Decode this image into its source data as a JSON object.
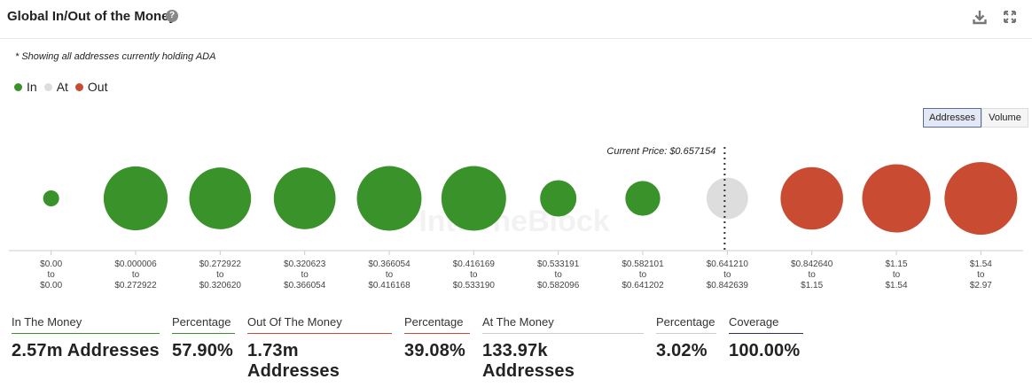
{
  "header": {
    "title": "Global In/Out of the Money",
    "help_glyph": "?"
  },
  "note": "* Showing all addresses currently holding ADA",
  "legend": [
    {
      "label": "In",
      "color": "#3a922a"
    },
    {
      "label": "At",
      "color": "#dddddd"
    },
    {
      "label": "Out",
      "color": "#c84b32"
    }
  ],
  "toggles": {
    "addresses": "Addresses",
    "volume": "Volume",
    "active": "addresses"
  },
  "watermark": "IntoTheBlock",
  "chart_data": {
    "type": "bubble",
    "current_price_label": "Current Price: $0.657154",
    "current_price_position": "between bucket 8 and bucket 9",
    "buckets": [
      {
        "from": "$0.00",
        "to": "$0.00",
        "status": "in",
        "relative_size": 0.22
      },
      {
        "from": "$0.000006",
        "to": "$0.272922",
        "status": "in",
        "relative_size": 0.88
      },
      {
        "from": "$0.272922",
        "to": "$0.320620",
        "status": "in",
        "relative_size": 0.85
      },
      {
        "from": "$0.320623",
        "to": "$0.366054",
        "status": "in",
        "relative_size": 0.85
      },
      {
        "from": "$0.366054",
        "to": "$0.416168",
        "status": "in",
        "relative_size": 0.89
      },
      {
        "from": "$0.416169",
        "to": "$0.533190",
        "status": "in",
        "relative_size": 0.89
      },
      {
        "from": "$0.533191",
        "to": "$0.582096",
        "status": "in",
        "relative_size": 0.5
      },
      {
        "from": "$0.582101",
        "to": "$0.641202",
        "status": "in",
        "relative_size": 0.48
      },
      {
        "from": "$0.641210",
        "to": "$0.842639",
        "status": "at",
        "relative_size": 0.57
      },
      {
        "from": "$0.842640",
        "to": "$1.15",
        "status": "out",
        "relative_size": 0.86
      },
      {
        "from": "$1.15",
        "to": "$1.54",
        "status": "out",
        "relative_size": 0.94
      },
      {
        "from": "$1.54",
        "to": "$2.97",
        "status": "out",
        "relative_size": 1.0
      }
    ],
    "to_word": "to"
  },
  "stats": [
    {
      "label": "In The Money",
      "value": "2.57m Addresses",
      "color": "#3a922a"
    },
    {
      "label": "Percentage",
      "value": "57.90%",
      "color": "#3a922a"
    },
    {
      "label": "Out Of The Money",
      "value": "1.73m Addresses",
      "color": "#c84b32"
    },
    {
      "label": "Percentage",
      "value": "39.08%",
      "color": "#c84b32"
    },
    {
      "label": "At The Money",
      "value": "133.97k Addresses",
      "color": "#cccccc"
    },
    {
      "label": "Percentage",
      "value": "3.02%",
      "color": "#cccccc"
    },
    {
      "label": "Coverage",
      "value": "100.00%",
      "color": "#2c3066"
    }
  ]
}
